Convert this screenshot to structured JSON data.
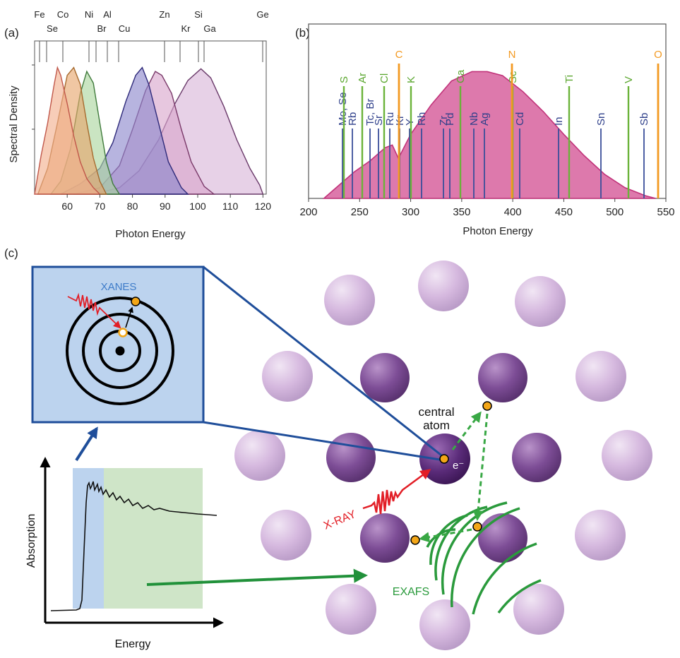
{
  "panel_a": {
    "label": "(a)",
    "xlabel": "Photon Energy",
    "ylabel": "Spectral Density",
    "xticks": [
      "60",
      "70",
      "80",
      "90",
      "100",
      "110",
      "120"
    ],
    "elements_top": [
      "Fe",
      "Co",
      "Ni",
      "Al",
      "Zn",
      "Si",
      "Ge"
    ],
    "elements_bottom": [
      "Se",
      "Br",
      "Cu",
      "Kr",
      "Ga"
    ]
  },
  "panel_b": {
    "label": "(b)",
    "xlabel": "Photon Energy",
    "xticks": [
      "200",
      "250",
      "300",
      "350",
      "400",
      "450",
      "500",
      "550"
    ],
    "orange_labels": [
      "C",
      "N",
      "O"
    ],
    "green_labels": [
      "S",
      "Ar",
      "Cl",
      "K",
      "Ca",
      "Sc",
      "Ti",
      "V"
    ],
    "blue_labels": [
      "Mo, Se",
      "Rb",
      "Tc, Br",
      "Sr",
      "Ru",
      "Kr",
      "Y",
      "Rh",
      "Zr",
      "Pd",
      "Nb",
      "Ag",
      "Cd",
      "In",
      "Sn",
      "Sb"
    ]
  },
  "panel_c": {
    "label": "(c)",
    "xanes_label": "XANES",
    "exafs_label": "EXAFS",
    "xray_label": "X-RAY",
    "central_atom_line1": "central",
    "central_atom_line2": "atom",
    "electron_label": "e⁻",
    "absorption_label": "Absorption",
    "energy_label": "Energy"
  },
  "chart_data": [
    {
      "type": "area",
      "title": "",
      "xlabel": "Photon Energy",
      "ylabel": "Spectral Density",
      "xlim": [
        50,
        121
      ],
      "series": [
        {
          "values": [
            [
              50,
              0.0
            ],
            [
              52,
              0.3
            ],
            [
              54,
              0.55
            ],
            [
              56,
              0.85
            ],
            [
              57,
              0.98
            ],
            [
              58,
              0.92
            ],
            [
              60,
              0.7
            ],
            [
              62,
              0.45
            ],
            [
              64,
              0.25
            ],
            [
              66,
              0.12
            ],
            [
              68,
              0.05
            ],
            [
              70,
              0.0
            ]
          ]
        },
        {
          "values": [
            [
              51,
              0.0
            ],
            [
              54,
              0.2
            ],
            [
              57,
              0.55
            ],
            [
              60,
              0.92
            ],
            [
              62,
              0.98
            ],
            [
              64,
              0.85
            ],
            [
              66,
              0.55
            ],
            [
              68,
              0.28
            ],
            [
              70,
              0.1
            ],
            [
              72,
              0.0
            ]
          ]
        },
        {
          "values": [
            [
              55,
              0.0
            ],
            [
              58,
              0.1
            ],
            [
              61,
              0.35
            ],
            [
              64,
              0.78
            ],
            [
              66,
              0.95
            ],
            [
              68,
              0.86
            ],
            [
              70,
              0.55
            ],
            [
              72,
              0.25
            ],
            [
              74,
              0.08
            ],
            [
              76,
              0.0
            ]
          ]
        },
        {
          "values": [
            [
              58,
              0.0
            ],
            [
              64,
              0.08
            ],
            [
              70,
              0.2
            ],
            [
              74,
              0.4
            ],
            [
              78,
              0.72
            ],
            [
              81,
              0.92
            ],
            [
              83,
              0.98
            ],
            [
              85,
              0.85
            ],
            [
              88,
              0.55
            ],
            [
              91,
              0.25
            ],
            [
              95,
              0.05
            ],
            [
              97,
              0.0
            ]
          ]
        },
        {
          "values": [
            [
              62,
              0.0
            ],
            [
              70,
              0.05
            ],
            [
              76,
              0.22
            ],
            [
              80,
              0.5
            ],
            [
              84,
              0.8
            ],
            [
              87,
              0.95
            ],
            [
              89,
              0.92
            ],
            [
              92,
              0.78
            ],
            [
              95,
              0.5
            ],
            [
              98,
              0.25
            ],
            [
              102,
              0.06
            ],
            [
              105,
              0.0
            ]
          ]
        },
        {
          "values": [
            [
              68,
              0.0
            ],
            [
              76,
              0.05
            ],
            [
              82,
              0.18
            ],
            [
              88,
              0.42
            ],
            [
              93,
              0.7
            ],
            [
              97,
              0.88
            ],
            [
              101,
              0.97
            ],
            [
              104,
              0.9
            ],
            [
              108,
              0.68
            ],
            [
              112,
              0.42
            ],
            [
              116,
              0.2
            ],
            [
              119,
              0.07
            ],
            [
              120,
              0.0
            ]
          ]
        }
      ]
    },
    {
      "type": "area",
      "title": "",
      "xlabel": "Photon Energy",
      "ylabel": "",
      "xlim": [
        200,
        550
      ],
      "series": [
        {
          "values": [
            [
              215,
              0.0
            ],
            [
              230,
              0.1
            ],
            [
              245,
              0.2
            ],
            [
              260,
              0.28
            ],
            [
              275,
              0.38
            ],
            [
              282,
              0.4
            ],
            [
              288,
              0.3
            ],
            [
              292,
              0.36
            ],
            [
              300,
              0.48
            ],
            [
              320,
              0.7
            ],
            [
              340,
              0.88
            ],
            [
              360,
              0.95
            ],
            [
              375,
              0.95
            ],
            [
              390,
              0.92
            ],
            [
              410,
              0.8
            ],
            [
              430,
              0.65
            ],
            [
              450,
              0.48
            ],
            [
              470,
              0.32
            ],
            [
              490,
              0.18
            ],
            [
              510,
              0.08
            ],
            [
              530,
              0.02
            ],
            [
              540,
              0.0
            ]
          ]
        }
      ]
    }
  ]
}
